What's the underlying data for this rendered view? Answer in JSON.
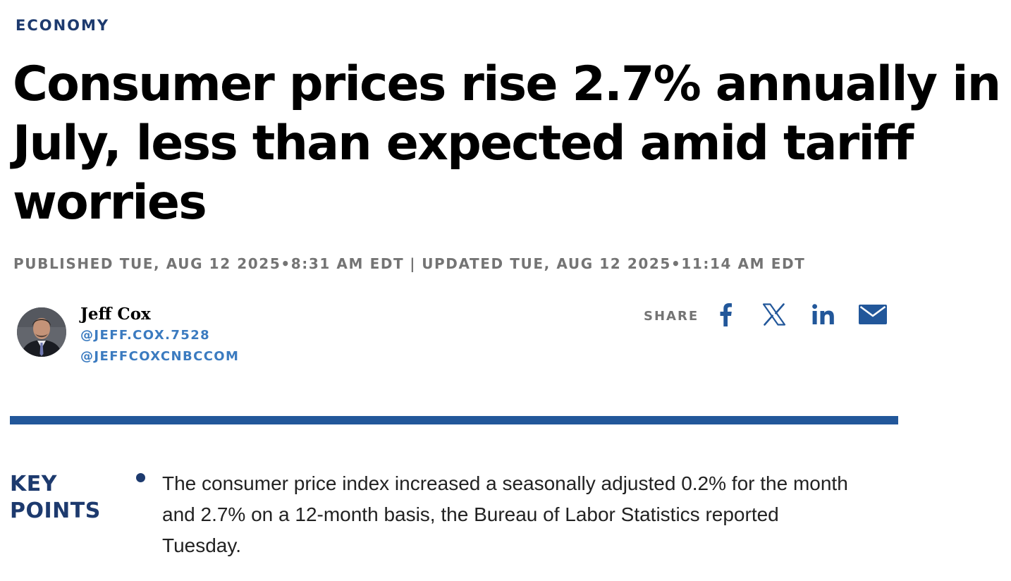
{
  "section": {
    "label": "ECONOMY"
  },
  "headline": "Consumer prices rise 2.7% annually in July, less than expected amid tariff worries",
  "timestamps": {
    "published": "PUBLISHED TUE, AUG 12 2025•8:31 AM EDT",
    "separator": "|",
    "updated": "UPDATED TUE, AUG 12 2025•11:14 AM EDT"
  },
  "author": {
    "name": "Jeff Cox",
    "handles": [
      "@JEFF.COX.7528",
      "@JEFFCOXCNBCCOM"
    ]
  },
  "share": {
    "label": "SHARE",
    "icons": [
      "facebook-icon",
      "x-icon",
      "linkedin-icon",
      "email-icon"
    ],
    "color": "#22579a"
  },
  "colors": {
    "brand_navy": "#1d3a6e",
    "divider_blue": "#22579a",
    "link_blue": "#3b7bc0",
    "meta_gray": "#747474"
  },
  "key_points": {
    "title": "KEY POINTS",
    "items": [
      "The consumer price index increased a seasonally adjusted 0.2% for the month and 2.7% on a 12-month basis, the Bureau of Labor Statistics reported Tuesday."
    ]
  }
}
